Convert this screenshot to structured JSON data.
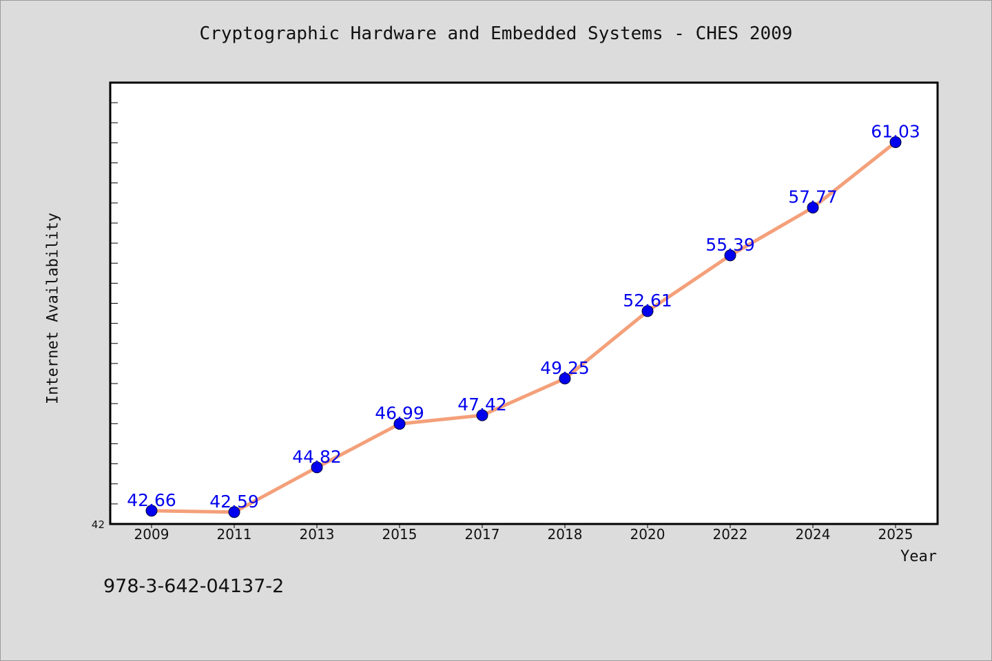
{
  "page": {
    "footer_code": "978-3-642-04137-2"
  },
  "chart_data": {
    "type": "line",
    "title": "Cryptographic Hardware and Embedded Systems - CHES 2009",
    "xlabel": "Year",
    "ylabel": "Internet Availability",
    "categories": [
      "2009",
      "2011",
      "2013",
      "2015",
      "2017",
      "2018",
      "2020",
      "2022",
      "2024",
      "2025"
    ],
    "series": [
      {
        "values": [
          42.66,
          42.59,
          44.82,
          46.99,
          47.42,
          49.25,
          52.61,
          55.39,
          57.77,
          61.03
        ]
      }
    ],
    "value_labels": [
      "42.66",
      "42.59",
      "44.82",
      "46.99",
      "47.42",
      "49.25",
      "52.61",
      "55.39",
      "57.77",
      "61.03"
    ],
    "ylim": [
      42,
      64
    ],
    "y_tick_label_min": "42",
    "y_minor_tick_step": 1,
    "grid": false,
    "legend": "none",
    "colors": {
      "line": "#f4a07a",
      "marker": "#0000ee",
      "data_label": "#0000ee",
      "plot_background": "#ffffff",
      "page_background": "#dcdcdc"
    }
  }
}
